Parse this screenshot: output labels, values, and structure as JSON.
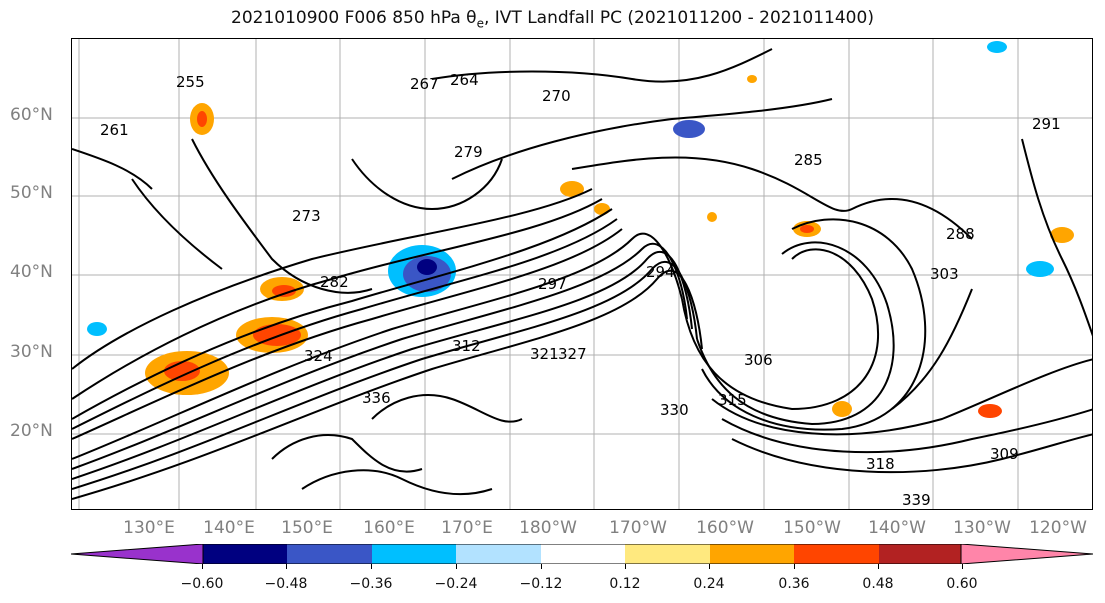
{
  "title": {
    "prefix": "2021010900 F006 850 hPa θ",
    "sub": "e",
    "suffix": ", IVT Landfall PC (2021011200 - 2021011400)"
  },
  "lat_labels": [
    "60°N",
    "50°N",
    "40°N",
    "30°N",
    "20°N"
  ],
  "lon_labels": [
    "130°E",
    "140°E",
    "150°E",
    "160°E",
    "170°E",
    "180°W",
    "170°W",
    "160°W",
    "150°W",
    "140°W",
    "130°W",
    "120°W"
  ],
  "contour_labels": [
    "264",
    "270",
    "279",
    "285",
    "282",
    "273",
    "267",
    "261",
    "255",
    "291",
    "288",
    "297",
    "303",
    "306",
    "309",
    "312",
    "315",
    "318",
    "321",
    "324",
    "327",
    "330",
    "336",
    "339",
    "294"
  ],
  "colorbar": {
    "colors": [
      "#9932cc",
      "#000080",
      "#3a56c6",
      "#00bfff",
      "#b2e2ff",
      "#ffffff",
      "#ffe97f",
      "#ffa500",
      "#ff4500",
      "#b22222",
      "#ff85a9"
    ],
    "tick_labels": [
      "−0.60",
      "−0.48",
      "−0.36",
      "−0.24",
      "−0.12",
      "0.12",
      "0.24",
      "0.36",
      "0.48",
      "0.60"
    ]
  }
}
